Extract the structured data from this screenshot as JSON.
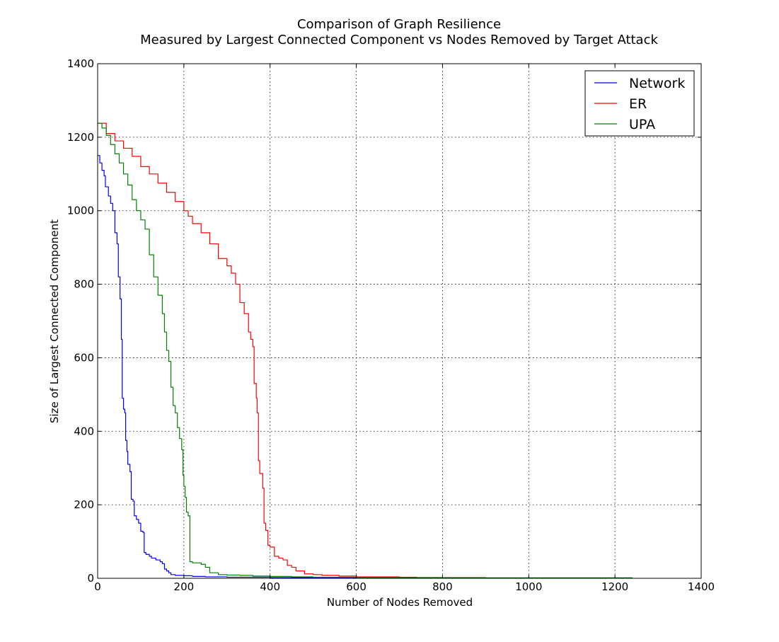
{
  "chart_data": {
    "type": "line",
    "title": "Comparison of Graph Resilience",
    "subtitle": "Measured by Largest Connected Component vs Nodes Removed by Target Attack",
    "xlabel": "Number of Nodes Removed",
    "ylabel": "Size of Largest Connected Component",
    "xlim": [
      0,
      1400
    ],
    "ylim": [
      0,
      1400
    ],
    "xticks": [
      0,
      200,
      400,
      600,
      800,
      1000,
      1200,
      1400
    ],
    "yticks": [
      0,
      200,
      400,
      600,
      800,
      1000,
      1200,
      1400
    ],
    "grid": true,
    "legend_position": "top-right",
    "series": [
      {
        "name": "Network",
        "color": "#0000ff",
        "points": [
          [
            0,
            1150
          ],
          [
            5,
            1130
          ],
          [
            10,
            1110
          ],
          [
            15,
            1095
          ],
          [
            18,
            1065
          ],
          [
            25,
            1040
          ],
          [
            30,
            1020
          ],
          [
            35,
            1000
          ],
          [
            40,
            940
          ],
          [
            45,
            910
          ],
          [
            48,
            820
          ],
          [
            52,
            760
          ],
          [
            55,
            650
          ],
          [
            57,
            490
          ],
          [
            60,
            460
          ],
          [
            63,
            450
          ],
          [
            65,
            375
          ],
          [
            68,
            345
          ],
          [
            70,
            310
          ],
          [
            75,
            290
          ],
          [
            78,
            215
          ],
          [
            82,
            210
          ],
          [
            85,
            170
          ],
          [
            90,
            160
          ],
          [
            95,
            150
          ],
          [
            100,
            128
          ],
          [
            105,
            125
          ],
          [
            108,
            70
          ],
          [
            112,
            65
          ],
          [
            120,
            60
          ],
          [
            125,
            55
          ],
          [
            135,
            50
          ],
          [
            145,
            45
          ],
          [
            150,
            40
          ],
          [
            155,
            25
          ],
          [
            160,
            20
          ],
          [
            165,
            15
          ],
          [
            170,
            10
          ],
          [
            180,
            8
          ],
          [
            200,
            7
          ],
          [
            220,
            5
          ],
          [
            250,
            4
          ],
          [
            300,
            3
          ],
          [
            400,
            2
          ],
          [
            600,
            1
          ],
          [
            900,
            1
          ],
          [
            1240,
            0
          ]
        ]
      },
      {
        "name": "ER",
        "color": "#ff0000",
        "points": [
          [
            0,
            1238
          ],
          [
            20,
            1210
          ],
          [
            40,
            1190
          ],
          [
            60,
            1170
          ],
          [
            80,
            1148
          ],
          [
            100,
            1120
          ],
          [
            120,
            1100
          ],
          [
            140,
            1075
          ],
          [
            160,
            1050
          ],
          [
            180,
            1025
          ],
          [
            200,
            1000
          ],
          [
            210,
            985
          ],
          [
            220,
            965
          ],
          [
            240,
            940
          ],
          [
            260,
            910
          ],
          [
            280,
            870
          ],
          [
            300,
            850
          ],
          [
            310,
            830
          ],
          [
            320,
            800
          ],
          [
            330,
            750
          ],
          [
            340,
            720
          ],
          [
            350,
            670
          ],
          [
            355,
            650
          ],
          [
            360,
            630
          ],
          [
            363,
            530
          ],
          [
            368,
            490
          ],
          [
            370,
            450
          ],
          [
            373,
            320
          ],
          [
            376,
            285
          ],
          [
            380,
            285
          ],
          [
            383,
            245
          ],
          [
            386,
            150
          ],
          [
            390,
            130
          ],
          [
            395,
            90
          ],
          [
            400,
            85
          ],
          [
            410,
            60
          ],
          [
            420,
            55
          ],
          [
            430,
            50
          ],
          [
            440,
            35
          ],
          [
            450,
            30
          ],
          [
            460,
            20
          ],
          [
            480,
            12
          ],
          [
            500,
            10
          ],
          [
            520,
            8
          ],
          [
            560,
            6
          ],
          [
            600,
            4
          ],
          [
            700,
            3
          ],
          [
            740,
            2
          ],
          [
            900,
            1
          ],
          [
            1240,
            0
          ]
        ]
      },
      {
        "name": "UPA",
        "color": "#008000",
        "points": [
          [
            0,
            1238
          ],
          [
            10,
            1225
          ],
          [
            20,
            1205
          ],
          [
            30,
            1180
          ],
          [
            40,
            1155
          ],
          [
            50,
            1130
          ],
          [
            60,
            1100
          ],
          [
            70,
            1070
          ],
          [
            80,
            1030
          ],
          [
            90,
            1000
          ],
          [
            100,
            975
          ],
          [
            110,
            950
          ],
          [
            120,
            880
          ],
          [
            130,
            820
          ],
          [
            140,
            770
          ],
          [
            150,
            720
          ],
          [
            155,
            670
          ],
          [
            160,
            620
          ],
          [
            165,
            590
          ],
          [
            170,
            520
          ],
          [
            175,
            470
          ],
          [
            180,
            450
          ],
          [
            185,
            410
          ],
          [
            190,
            380
          ],
          [
            195,
            350
          ],
          [
            198,
            280
          ],
          [
            200,
            250
          ],
          [
            203,
            220
          ],
          [
            206,
            180
          ],
          [
            210,
            170
          ],
          [
            214,
            45
          ],
          [
            220,
            42
          ],
          [
            240,
            38
          ],
          [
            250,
            30
          ],
          [
            260,
            15
          ],
          [
            280,
            10
          ],
          [
            300,
            9
          ],
          [
            330,
            8
          ],
          [
            360,
            6
          ],
          [
            400,
            5
          ],
          [
            450,
            4
          ],
          [
            500,
            3
          ],
          [
            600,
            2
          ],
          [
            800,
            1
          ],
          [
            1240,
            0
          ]
        ]
      }
    ]
  }
}
